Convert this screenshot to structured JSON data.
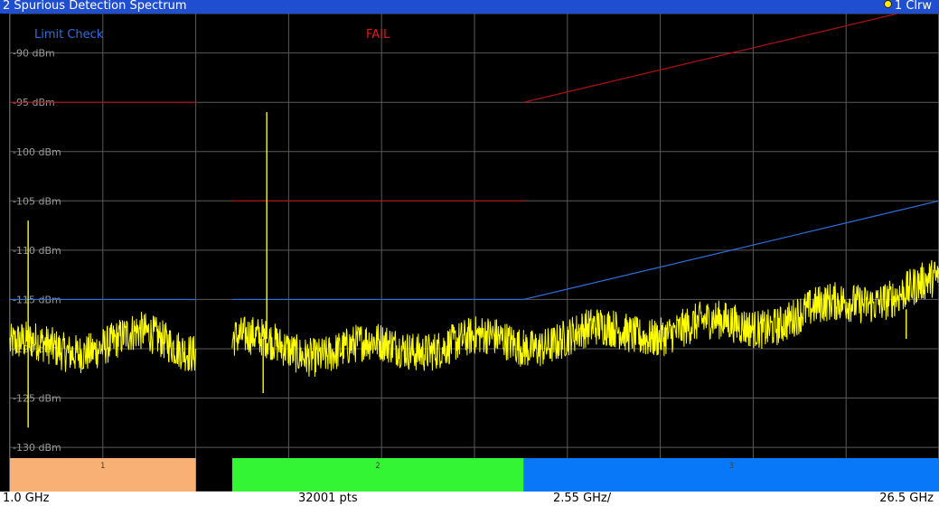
{
  "window": {
    "title": "2 Spurious Detection Spectrum",
    "trace_indicator": "1 Clrw"
  },
  "colors": {
    "title_bar": "#1f4fd0",
    "trace": "#ffff00",
    "limit_line_upper": "#b01010",
    "limit_line_check": "#2e6fe0",
    "fail_text": "#e01818",
    "limit_check_text": "#2e6fe0",
    "grid": "#5a5a5a",
    "range_colors": [
      "#f8b074",
      "#34f534",
      "#0878f8"
    ]
  },
  "chart_data": {
    "type": "line",
    "x_unit": "GHz",
    "x_start": 1.0,
    "x_stop": 26.5,
    "x_step_per_division": 2.55,
    "ylim": [
      -131,
      -86
    ],
    "ylabel_unit": "dBm",
    "y_ticks": [
      "-90 dBm",
      "-95 dBm",
      "-100 dBm",
      "-105 dBm",
      "-110 dBm",
      "-115 dBm",
      "-120 dBm",
      "-125 dBm",
      "-130 dBm"
    ],
    "grid": true,
    "annotations": {
      "limit_check_label": "Limit Check",
      "limit_check_result": "FAIL"
    },
    "ranges": [
      {
        "label": "1",
        "x": [
          1.0,
          6.1
        ]
      },
      {
        "label": "2",
        "x": [
          7.1,
          15.1
        ]
      },
      {
        "label": "3",
        "x": [
          15.1,
          26.5
        ]
      }
    ],
    "limit_lines": [
      {
        "name": "upper",
        "segments": [
          {
            "x": [
              1.0,
              6.1
            ],
            "y": [
              -95,
              -95
            ]
          },
          {
            "x": [
              7.1,
              15.1
            ],
            "y": [
              -105,
              -105
            ]
          },
          {
            "x": [
              15.1,
              26.5
            ],
            "y": [
              -95,
              -85
            ]
          }
        ]
      },
      {
        "name": "check",
        "segments": [
          {
            "x": [
              1.0,
              6.1
            ],
            "y": [
              -115,
              -115
            ]
          },
          {
            "x": [
              7.1,
              15.1
            ],
            "y": [
              -115,
              -115
            ]
          },
          {
            "x": [
              15.1,
              26.5
            ],
            "y": [
              -115,
              -105
            ]
          }
        ]
      }
    ],
    "series": [
      {
        "trace": "1 Clrw",
        "segments": [
          {
            "x": [
              1.0,
              2.5,
              3.5,
              4.5,
              5.5,
              6.1
            ],
            "y": [
              -120,
              -120.5,
              -120,
              -119.5,
              -120,
              -120
            ]
          },
          {
            "x": [
              7.1,
              9.0,
              11.0,
              13.0,
              15.1
            ],
            "y": [
              -119,
              -119.5,
              -119.5,
              -119.5,
              -120
            ]
          },
          {
            "x": [
              15.1,
              17.0,
              19.0,
              21.0,
              23.0,
              25.0,
              26.5
            ],
            "y": [
              -120,
              -119,
              -118,
              -117,
              -116,
              -114.5,
              -114
            ]
          }
        ],
        "spikes": [
          {
            "x": 1.5,
            "from": -120,
            "to": -107
          },
          {
            "x": 1.5,
            "from": -120,
            "to": -128
          },
          {
            "x": 8.05,
            "from": -119,
            "to": -96
          },
          {
            "x": 7.95,
            "from": -119,
            "to": -124.5
          },
          {
            "x": 25.6,
            "from": -116,
            "to": -119
          }
        ],
        "noise_amplitude_db": 4
      }
    ],
    "sweep_points": "32001 pts"
  },
  "footer": {
    "start": "1.0 GHz",
    "points": "32001 pts",
    "span_per_div": "2.55 GHz/",
    "stop": "26.5 GHz"
  }
}
